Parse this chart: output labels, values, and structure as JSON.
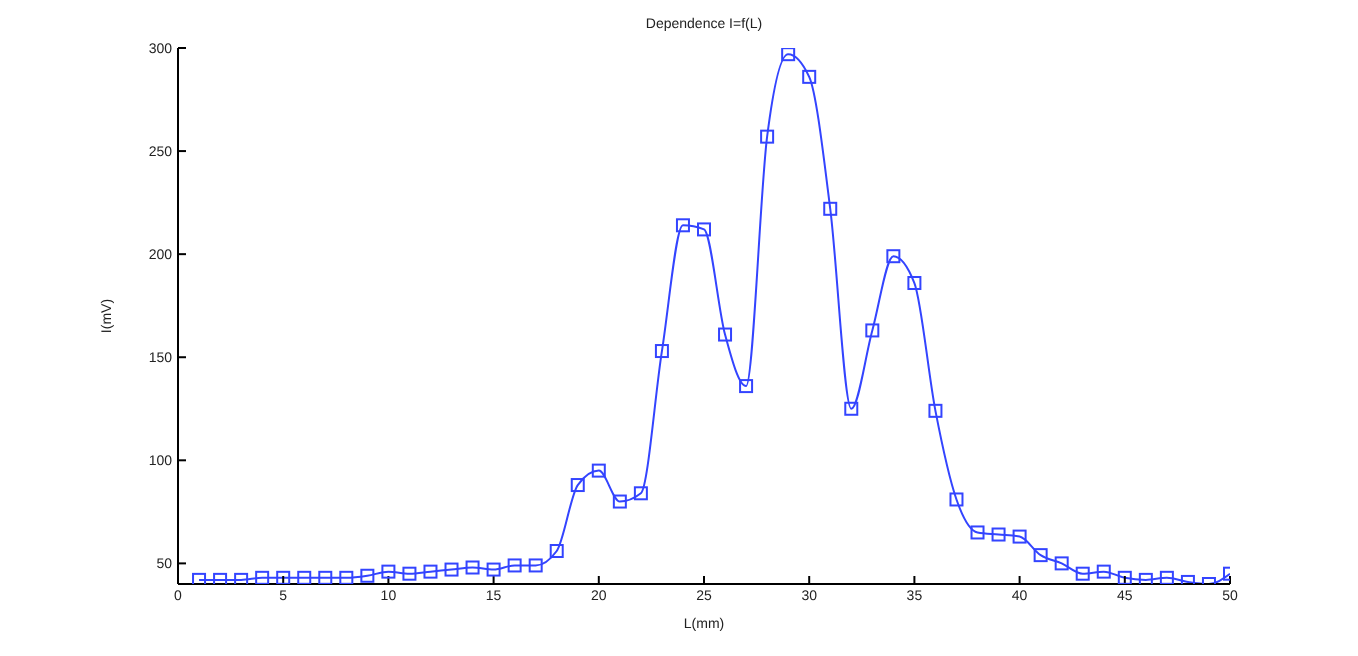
{
  "chart_data": {
    "type": "line",
    "title": "Dependence I=f(L)",
    "xlabel": "L(mm)",
    "ylabel": "I(mV)",
    "x": [
      1,
      2,
      3,
      4,
      5,
      6,
      7,
      8,
      9,
      10,
      11,
      12,
      13,
      14,
      15,
      16,
      17,
      18,
      19,
      20,
      21,
      22,
      23,
      24,
      25,
      26,
      27,
      28,
      29,
      30,
      31,
      32,
      33,
      34,
      35,
      36,
      37,
      38,
      39,
      40,
      41,
      42,
      43,
      44,
      45,
      46,
      47,
      48,
      49,
      50
    ],
    "series": [
      {
        "color": "#3344ff",
        "values": [
          42,
          42,
          42,
          43,
          43,
          43,
          43,
          43,
          44,
          46,
          45,
          46,
          47,
          48,
          47,
          49,
          49,
          56,
          88,
          95,
          80,
          84,
          153,
          214,
          212,
          161,
          136,
          257,
          297,
          286,
          222,
          125,
          163,
          199,
          186,
          124,
          81,
          65,
          64,
          63,
          54,
          50,
          45,
          46,
          43,
          42,
          43,
          41,
          40,
          45
        ]
      }
    ],
    "xlim": [
      0,
      50
    ],
    "xticks": [
      0,
      5,
      10,
      15,
      20,
      25,
      30,
      35,
      40,
      45,
      50
    ],
    "ylim": [
      40,
      300
    ],
    "yticks": [
      50,
      100,
      150,
      200,
      250,
      300
    ],
    "grid": false,
    "legend": false,
    "marker": "square",
    "line_style": "solid"
  }
}
